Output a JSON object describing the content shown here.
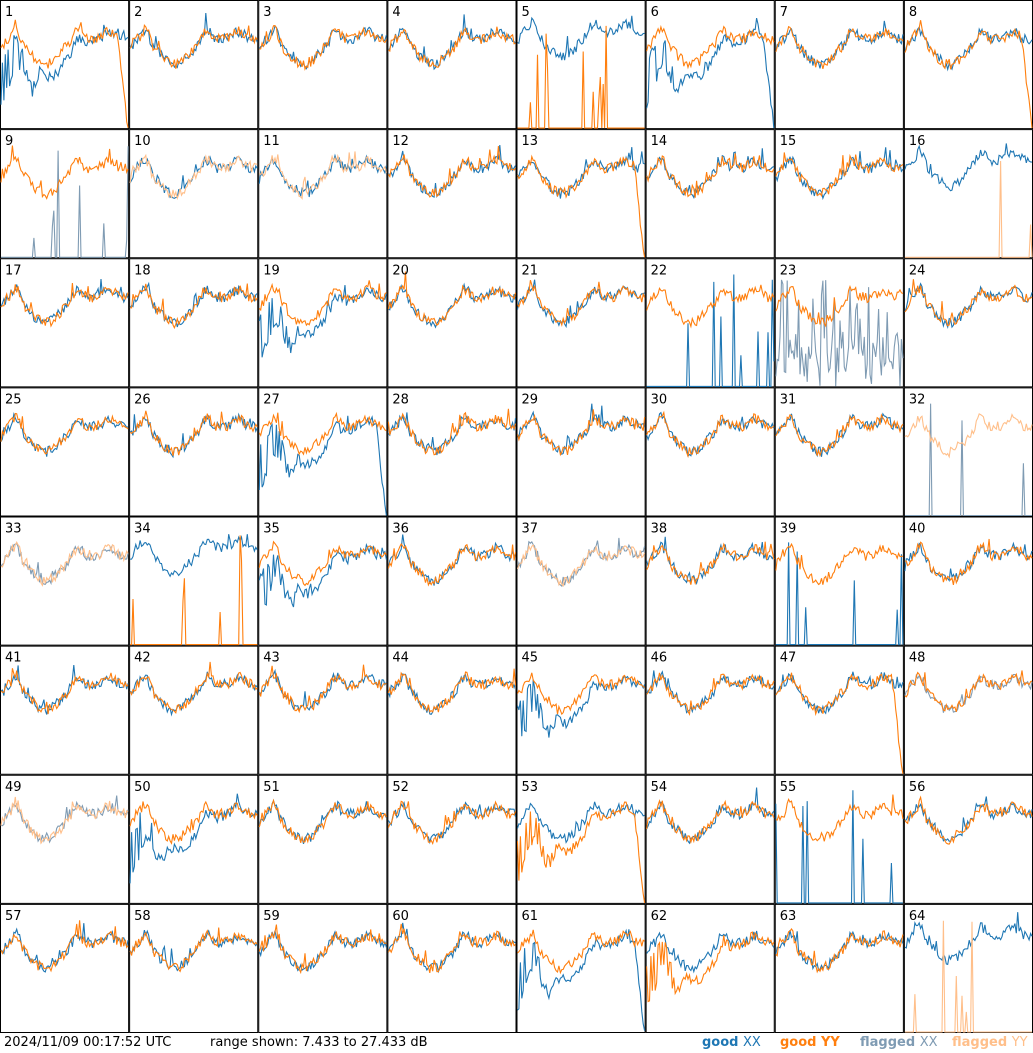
{
  "chart_data": {
    "type": "line",
    "title": "",
    "grid": {
      "rows": 8,
      "cols": 8
    },
    "ylim_db": [
      7.433,
      27.433
    ],
    "timestamp": "2024/11/09 00:17:52 UTC",
    "range_text": "range shown: 7.433 to 27.433 dB",
    "legend": [
      {
        "word": "good",
        "pol": "XX",
        "color": "#1f77b4"
      },
      {
        "word": "good",
        "pol": "YY",
        "color": "#ff7f0e"
      },
      {
        "word": "flagged",
        "pol": "XX",
        "color": "#7f9bb3"
      },
      {
        "word": "flagged",
        "pol": "YY",
        "color": "#ffbf8a"
      }
    ],
    "panels": [
      {
        "id": "1",
        "xx": "good-dip",
        "yy": "good-drop",
        "front": "yy"
      },
      {
        "id": "2",
        "xx": "good",
        "yy": "good",
        "front": "yy"
      },
      {
        "id": "3",
        "xx": "good",
        "yy": "good",
        "front": "yy"
      },
      {
        "id": "4",
        "xx": "good",
        "yy": "good",
        "front": "yy"
      },
      {
        "id": "5",
        "xx": "good-high",
        "yy": "good-spikes",
        "front": "yy"
      },
      {
        "id": "6",
        "xx": "good-dip-drop",
        "yy": "good",
        "front": "yy"
      },
      {
        "id": "7",
        "xx": "good",
        "yy": "good",
        "front": "yy"
      },
      {
        "id": "8",
        "xx": "good",
        "yy": "good-drop",
        "front": "yy"
      },
      {
        "id": "9",
        "xx": "flagged-spikes",
        "yy": "good",
        "front": "yy"
      },
      {
        "id": "10",
        "xx": "good",
        "yy": "flagged",
        "front": "yy"
      },
      {
        "id": "11",
        "xx": "good",
        "yy": "flagged",
        "front": "yy"
      },
      {
        "id": "12",
        "xx": "good",
        "yy": "good",
        "front": "yy"
      },
      {
        "id": "13",
        "xx": "good",
        "yy": "good-drop",
        "front": "yy"
      },
      {
        "id": "14",
        "xx": "good",
        "yy": "good",
        "front": "yy"
      },
      {
        "id": "15",
        "xx": "good",
        "yy": "good",
        "front": "yy"
      },
      {
        "id": "16",
        "xx": "good-high",
        "yy": "flagged-spikes",
        "front": "yy"
      },
      {
        "id": "17",
        "xx": "good",
        "yy": "good",
        "front": "yy"
      },
      {
        "id": "18",
        "xx": "good",
        "yy": "good",
        "front": "yy"
      },
      {
        "id": "19",
        "xx": "good-dip",
        "yy": "good",
        "front": "yy"
      },
      {
        "id": "20",
        "xx": "good",
        "yy": "good",
        "front": "yy"
      },
      {
        "id": "21",
        "xx": "good",
        "yy": "good",
        "front": "yy"
      },
      {
        "id": "22",
        "xx": "good-spikes",
        "yy": "good",
        "front": "yy"
      },
      {
        "id": "23",
        "xx": "flagged-noise",
        "yy": "good",
        "front": "yy"
      },
      {
        "id": "24",
        "xx": "good",
        "yy": "good",
        "front": "yy"
      },
      {
        "id": "25",
        "xx": "good",
        "yy": "good",
        "front": "yy"
      },
      {
        "id": "26",
        "xx": "good",
        "yy": "good",
        "front": "yy"
      },
      {
        "id": "27",
        "xx": "good-dip-drop",
        "yy": "good",
        "front": "yy"
      },
      {
        "id": "28",
        "xx": "good",
        "yy": "good",
        "front": "yy"
      },
      {
        "id": "29",
        "xx": "good",
        "yy": "good",
        "front": "yy"
      },
      {
        "id": "30",
        "xx": "good",
        "yy": "good",
        "front": "yy"
      },
      {
        "id": "31",
        "xx": "good",
        "yy": "good",
        "front": "yy"
      },
      {
        "id": "32",
        "xx": "flagged-spikes",
        "yy": "flagged",
        "front": "yy"
      },
      {
        "id": "33",
        "xx": "flagged",
        "yy": "flagged",
        "front": "yy"
      },
      {
        "id": "34",
        "xx": "good-high",
        "yy": "good-spikes",
        "front": "yy"
      },
      {
        "id": "35",
        "xx": "good-dip",
        "yy": "good",
        "front": "yy"
      },
      {
        "id": "36",
        "xx": "good",
        "yy": "good",
        "front": "yy"
      },
      {
        "id": "37",
        "xx": "flagged",
        "yy": "flagged",
        "front": "yy"
      },
      {
        "id": "38",
        "xx": "good",
        "yy": "good",
        "front": "yy"
      },
      {
        "id": "39",
        "xx": "good-spikes",
        "yy": "good",
        "front": "yy"
      },
      {
        "id": "40",
        "xx": "good",
        "yy": "good",
        "front": "yy"
      },
      {
        "id": "41",
        "xx": "good",
        "yy": "good",
        "front": "yy"
      },
      {
        "id": "42",
        "xx": "good",
        "yy": "good",
        "front": "yy"
      },
      {
        "id": "43",
        "xx": "good",
        "yy": "good",
        "front": "yy"
      },
      {
        "id": "44",
        "xx": "good",
        "yy": "good",
        "front": "yy"
      },
      {
        "id": "45",
        "xx": "good-dip",
        "yy": "good",
        "front": "yy"
      },
      {
        "id": "46",
        "xx": "good",
        "yy": "good",
        "front": "yy"
      },
      {
        "id": "47",
        "xx": "good",
        "yy": "good-drop",
        "front": "yy"
      },
      {
        "id": "48",
        "xx": "flagged",
        "yy": "good",
        "front": "yy"
      },
      {
        "id": "49",
        "xx": "flagged",
        "yy": "flagged",
        "front": "yy"
      },
      {
        "id": "50",
        "xx": "good-dip",
        "yy": "good",
        "front": "yy"
      },
      {
        "id": "51",
        "xx": "good",
        "yy": "good",
        "front": "yy"
      },
      {
        "id": "52",
        "xx": "good",
        "yy": "good",
        "front": "yy"
      },
      {
        "id": "53",
        "xx": "good",
        "yy": "good-dip-drop",
        "front": "yy"
      },
      {
        "id": "54",
        "xx": "good",
        "yy": "good",
        "front": "yy"
      },
      {
        "id": "55",
        "xx": "good-spikes",
        "yy": "good",
        "front": "yy"
      },
      {
        "id": "56",
        "xx": "good",
        "yy": "good",
        "front": "yy"
      },
      {
        "id": "57",
        "xx": "good",
        "yy": "good",
        "front": "yy"
      },
      {
        "id": "58",
        "xx": "good",
        "yy": "good",
        "front": "yy"
      },
      {
        "id": "59",
        "xx": "good",
        "yy": "good",
        "front": "yy"
      },
      {
        "id": "60",
        "xx": "good",
        "yy": "good",
        "front": "yy"
      },
      {
        "id": "61",
        "xx": "good-dip-drop",
        "yy": "good",
        "front": "yy"
      },
      {
        "id": "62",
        "xx": "good",
        "yy": "good-dip",
        "front": "yy"
      },
      {
        "id": "63",
        "xx": "good",
        "yy": "good",
        "front": "yy"
      },
      {
        "id": "64",
        "xx": "good-high",
        "yy": "flagged-spikes",
        "front": "yy"
      }
    ]
  }
}
